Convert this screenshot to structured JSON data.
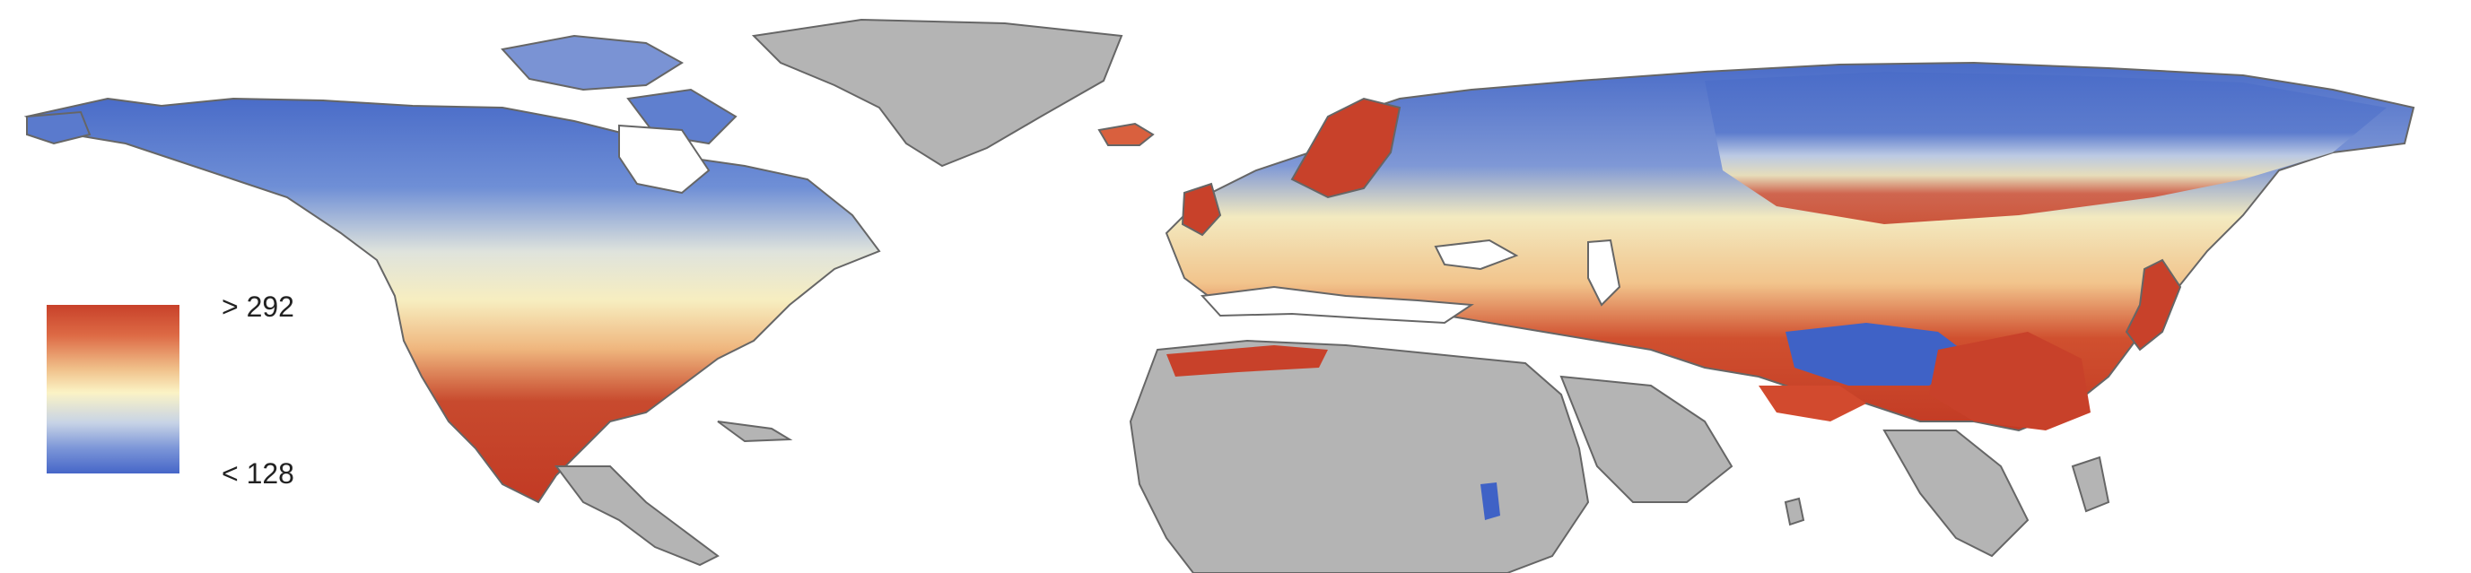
{
  "legend": {
    "max_label": "> 292",
    "min_label": "< 128",
    "colors": {
      "high": "#c8412a",
      "mid_high": "#f0c08a",
      "mid": "#fbf3c5",
      "mid_low": "#c7d3e6",
      "low": "#4666c8",
      "no_data": "#b4b4b4"
    }
  }
}
